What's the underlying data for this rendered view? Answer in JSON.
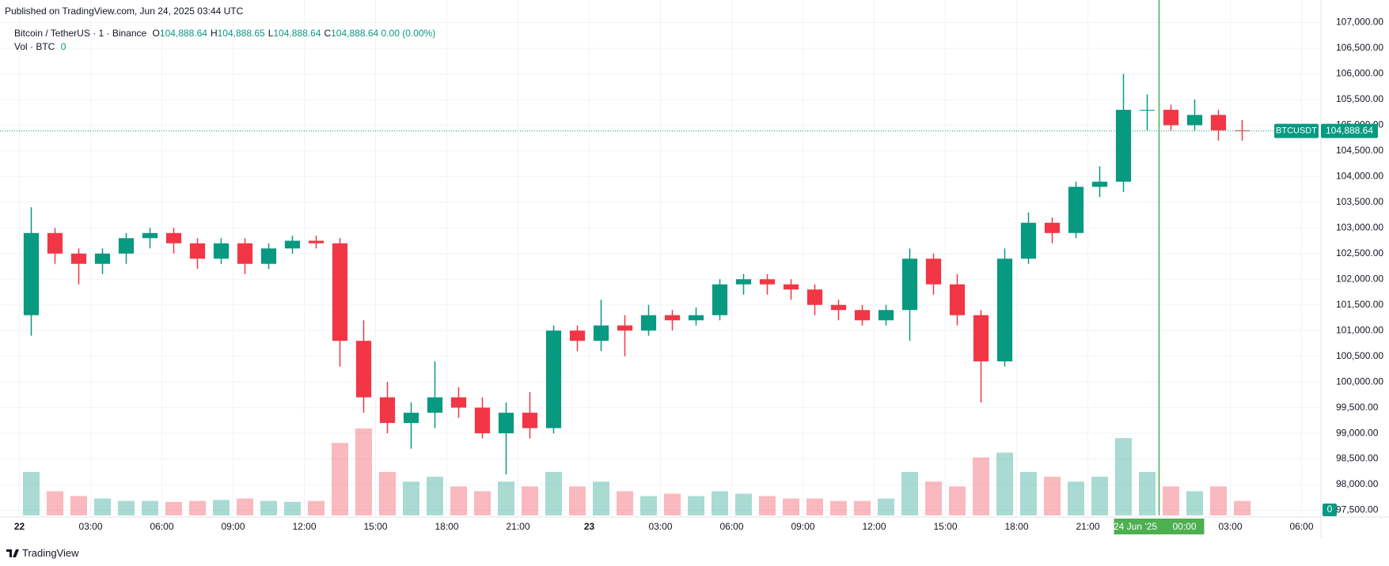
{
  "header": {
    "published": "Published on TradingView.com, Jun 24, 2025 03:44 UTC",
    "logo": "TradingView"
  },
  "legend": {
    "symbol": "Bitcoin / TetherUS · 1 · Binance",
    "ohlc": [
      {
        "key": "O",
        "value": "104,888.64"
      },
      {
        "key": "H",
        "value": "104,888.65"
      },
      {
        "key": "L",
        "value": "104,888.64"
      },
      {
        "key": "C",
        "value": "104,888.64"
      }
    ],
    "change": "0.00 (0.00%)",
    "volume_name": "Vol · BTC",
    "volume_value": "0"
  },
  "chart_data": {
    "type": "candlestick",
    "up_color": "#089981",
    "down_color": "#f23645",
    "grid": true,
    "ylim": [
      97400,
      107100
    ],
    "xlim": [
      "2025-06-21 23:11",
      "2025-06-24 06:47"
    ],
    "yticks": [
      {
        "value": 97500,
        "label": "97,500.00"
      },
      {
        "value": 98000,
        "label": "98,000.00"
      },
      {
        "value": 98500,
        "label": "98,500.00"
      },
      {
        "value": 99000,
        "label": "99,000.00"
      },
      {
        "value": 99500,
        "label": "99,500.00"
      },
      {
        "value": 100000,
        "label": "100,000.00"
      },
      {
        "value": 100500,
        "label": "100,500.00"
      },
      {
        "value": 101000,
        "label": "101,000.00"
      },
      {
        "value": 101500,
        "label": "101,500.00"
      },
      {
        "value": 102000,
        "label": "102,000.00"
      },
      {
        "value": 102500,
        "label": "102,500.00"
      },
      {
        "value": 103000,
        "label": "103,000.00"
      },
      {
        "value": 103500,
        "label": "103,500.00"
      },
      {
        "value": 104000,
        "label": "104,000.00"
      },
      {
        "value": 104500,
        "label": "104,500.00"
      },
      {
        "value": 105000,
        "label": "105,000.00"
      },
      {
        "value": 105500,
        "label": "105,500.00"
      },
      {
        "value": 106000,
        "label": "106,000.00"
      },
      {
        "value": 106500,
        "label": "106,500.00"
      },
      {
        "value": 107000,
        "label": "107,000.00"
      }
    ],
    "xticks": [
      {
        "value": "2025-06-22 00:00",
        "label": "22"
      },
      {
        "value": "2025-06-22 03:00",
        "label": "03:00"
      },
      {
        "value": "2025-06-22 06:00",
        "label": "06:00"
      },
      {
        "value": "2025-06-22 09:00",
        "label": "09:00"
      },
      {
        "value": "2025-06-22 12:00",
        "label": "12:00"
      },
      {
        "value": "2025-06-22 15:00",
        "label": "15:00"
      },
      {
        "value": "2025-06-22 18:00",
        "label": "18:00"
      },
      {
        "value": "2025-06-22 21:00",
        "label": "21:00"
      },
      {
        "value": "2025-06-23 00:00",
        "label": "23"
      },
      {
        "value": "2025-06-23 03:00",
        "label": "03:00"
      },
      {
        "value": "2025-06-23 06:00",
        "label": "06:00"
      },
      {
        "value": "2025-06-23 09:00",
        "label": "09:00"
      },
      {
        "value": "2025-06-23 12:00",
        "label": "12:00"
      },
      {
        "value": "2025-06-23 15:00",
        "label": "15:00"
      },
      {
        "value": "2025-06-23 18:00",
        "label": "18:00"
      },
      {
        "value": "2025-06-23 21:00",
        "label": "21:00"
      },
      {
        "value": "2025-06-24 03:00",
        "label": "03:00"
      },
      {
        "value": "2025-06-24 06:00",
        "label": "06:00"
      }
    ],
    "x": [
      "2025-06-22 00:00",
      "2025-06-22 01:00",
      "2025-06-22 02:00",
      "2025-06-22 03:00",
      "2025-06-22 04:00",
      "2025-06-22 05:00",
      "2025-06-22 06:00",
      "2025-06-22 07:00",
      "2025-06-22 08:00",
      "2025-06-22 09:00",
      "2025-06-22 10:00",
      "2025-06-22 11:00",
      "2025-06-22 12:00",
      "2025-06-22 13:00",
      "2025-06-22 14:00",
      "2025-06-22 15:00",
      "2025-06-22 16:00",
      "2025-06-22 17:00",
      "2025-06-22 18:00",
      "2025-06-22 19:00",
      "2025-06-22 20:00",
      "2025-06-22 21:00",
      "2025-06-22 22:00",
      "2025-06-22 23:00",
      "2025-06-23 00:00",
      "2025-06-23 01:00",
      "2025-06-23 02:00",
      "2025-06-23 03:00",
      "2025-06-23 04:00",
      "2025-06-23 05:00",
      "2025-06-23 06:00",
      "2025-06-23 07:00",
      "2025-06-23 08:00",
      "2025-06-23 09:00",
      "2025-06-23 10:00",
      "2025-06-23 11:00",
      "2025-06-23 12:00",
      "2025-06-23 13:00",
      "2025-06-23 14:00",
      "2025-06-23 15:00",
      "2025-06-23 16:00",
      "2025-06-23 17:00",
      "2025-06-23 18:00",
      "2025-06-23 19:00",
      "2025-06-23 20:00",
      "2025-06-23 21:00",
      "2025-06-23 22:00",
      "2025-06-23 23:00",
      "2025-06-24 00:00",
      "2025-06-24 01:00",
      "2025-06-24 02:00",
      "2025-06-24 03:00"
    ],
    "open": [
      101300,
      102900,
      102500,
      102300,
      102500,
      102800,
      102900,
      102700,
      102400,
      102700,
      102300,
      102600,
      102750,
      102700,
      100800,
      99700,
      99200,
      99400,
      99700,
      99500,
      99000,
      99400,
      99100,
      101000,
      100800,
      101100,
      101000,
      101300,
      101200,
      101300,
      101900,
      102000,
      101900,
      101800,
      101500,
      101400,
      101200,
      101400,
      102400,
      101900,
      101300,
      100400,
      102400,
      103100,
      102900,
      103800,
      103900,
      105300,
      105300,
      105000,
      105200,
      104900
    ],
    "high": [
      103400,
      103000,
      102600,
      102600,
      102900,
      103000,
      103000,
      102800,
      102800,
      102800,
      102700,
      102850,
      102850,
      102800,
      101200,
      100000,
      99600,
      100400,
      99900,
      99700,
      99600,
      99800,
      101100,
      101100,
      101600,
      101300,
      101500,
      101400,
      101450,
      102000,
      102100,
      102100,
      102000,
      101900,
      101600,
      101500,
      101500,
      102600,
      102500,
      102100,
      101400,
      102600,
      103300,
      103200,
      103900,
      104200,
      106000,
      105600,
      105400,
      105500,
      105300,
      105100
    ],
    "low": [
      100900,
      102300,
      101900,
      102100,
      102300,
      102600,
      102500,
      102200,
      102300,
      102100,
      102200,
      102500,
      102600,
      100300,
      99400,
      99000,
      98700,
      99100,
      99300,
      98900,
      98200,
      98900,
      99000,
      100600,
      100600,
      100500,
      100900,
      101000,
      101100,
      101200,
      101700,
      101700,
      101600,
      101300,
      101200,
      101100,
      101100,
      100800,
      101700,
      101100,
      99600,
      100300,
      102300,
      102700,
      102800,
      103600,
      103700,
      104900,
      104900,
      104900,
      104700,
      104700
    ],
    "close": [
      102900,
      102500,
      102300,
      102500,
      102800,
      102900,
      102700,
      102400,
      102700,
      102300,
      102600,
      102750,
      102700,
      100800,
      99700,
      99200,
      99400,
      99700,
      99500,
      99000,
      99400,
      99100,
      101000,
      100800,
      101100,
      101000,
      101300,
      101200,
      101300,
      101900,
      102000,
      101900,
      101800,
      101500,
      101400,
      101200,
      101400,
      102400,
      101900,
      101300,
      100400,
      102400,
      103100,
      102900,
      103800,
      103900,
      105300,
      105300,
      105000,
      105200,
      104900,
      104888.64
    ],
    "volume": [
      900,
      500,
      400,
      350,
      300,
      300,
      280,
      300,
      320,
      350,
      300,
      280,
      300,
      1500,
      1800,
      900,
      700,
      800,
      600,
      500,
      700,
      600,
      900,
      600,
      700,
      500,
      400,
      450,
      400,
      500,
      450,
      400,
      350,
      350,
      300,
      300,
      350,
      900,
      700,
      600,
      1200,
      1300,
      900,
      800,
      700,
      800,
      1600,
      900,
      600,
      500,
      600,
      300
    ],
    "last_price": {
      "name": "BTCUSDT",
      "value": 104888.64,
      "label": "104,888.64"
    },
    "crosshair": {
      "time": "2025-06-24 00:00",
      "date_label": "24 Jun '25",
      "time_label": "00:00"
    },
    "crosshair_color": "#4caf50"
  }
}
